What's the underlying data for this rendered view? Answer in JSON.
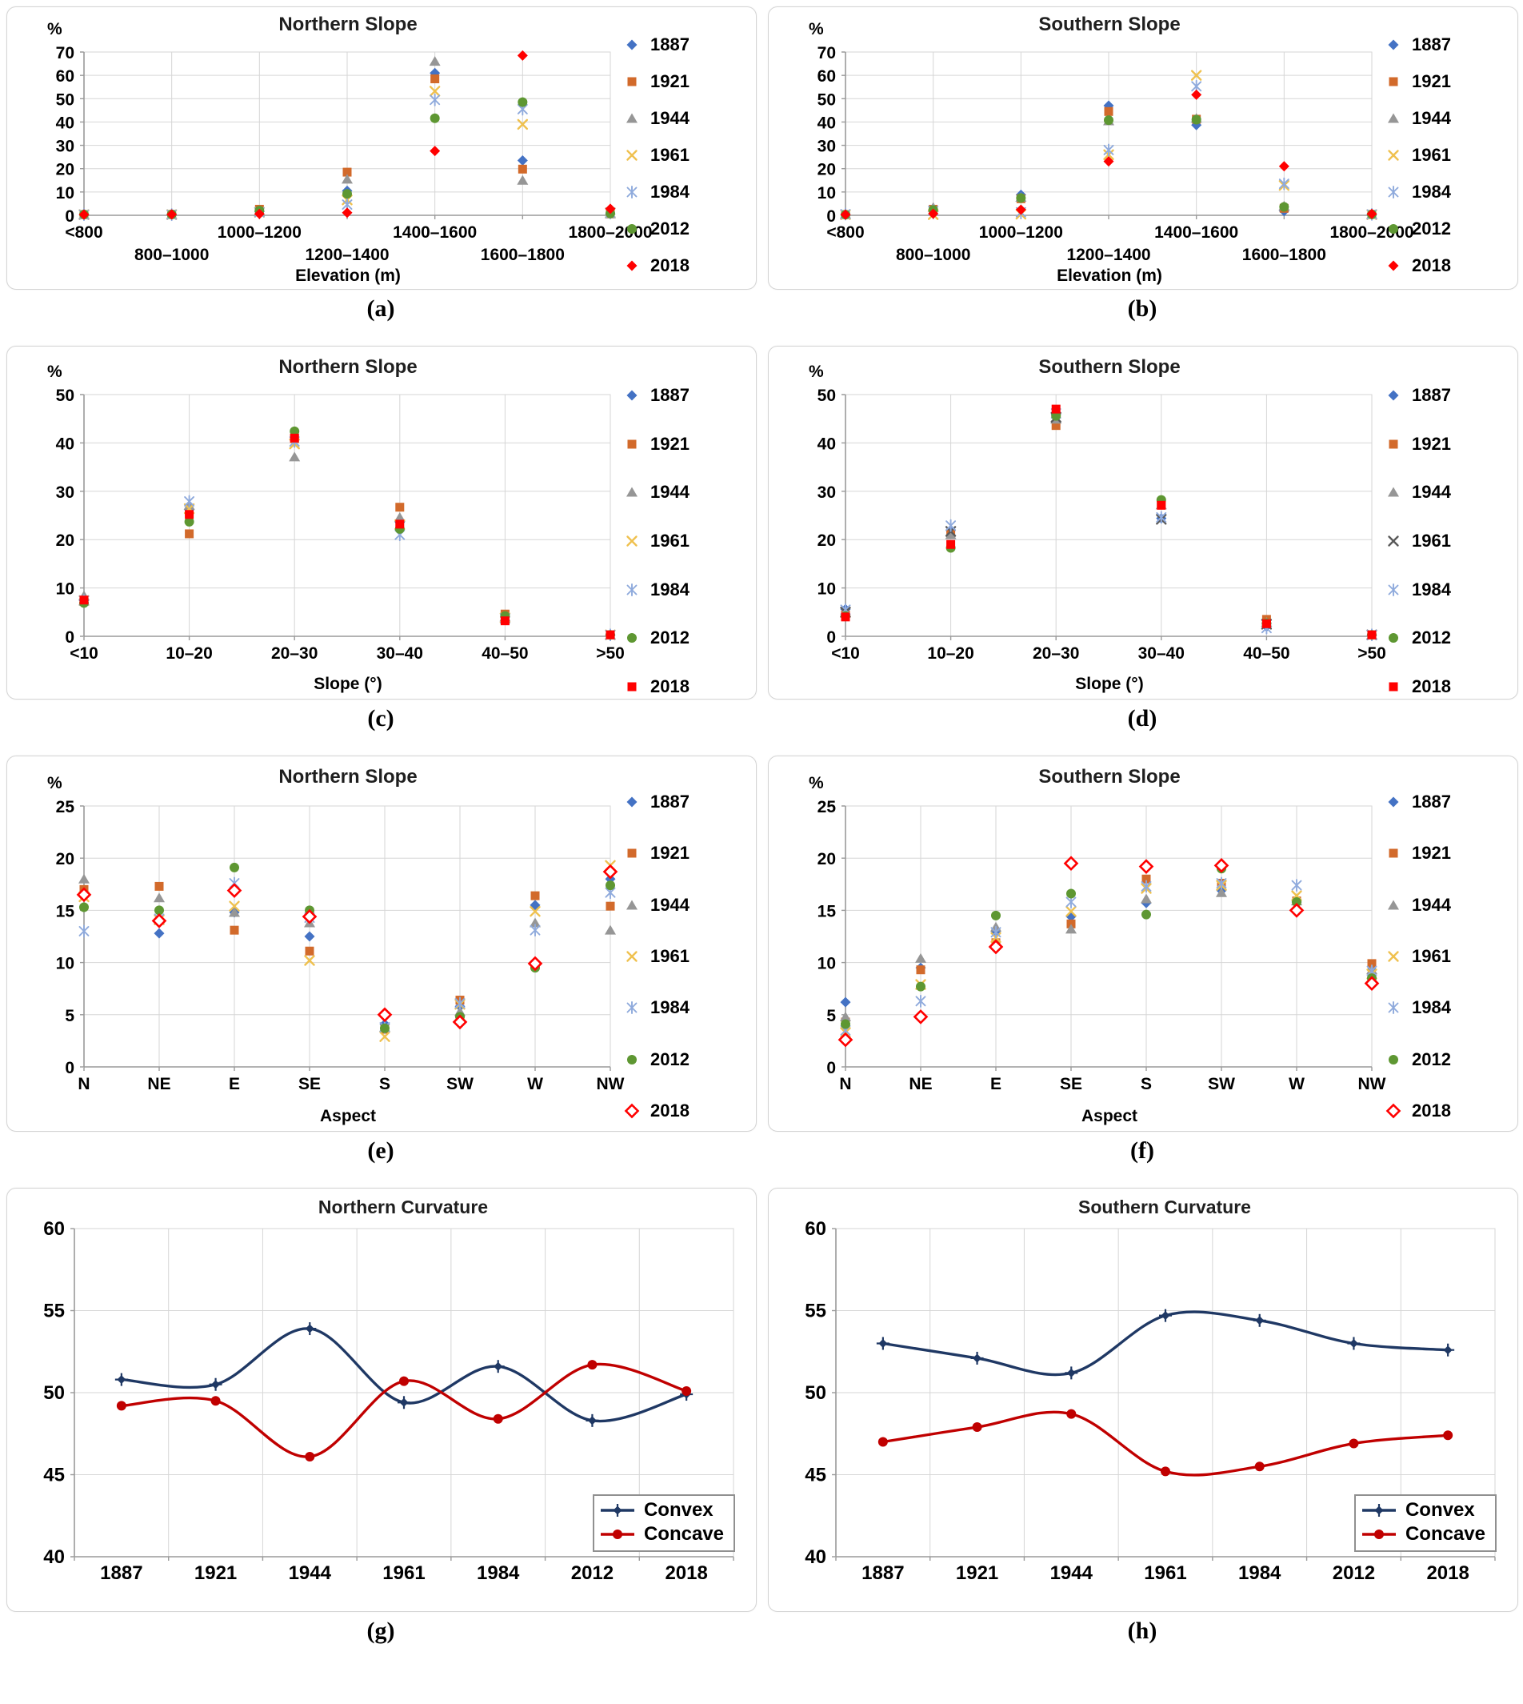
{
  "figure": {
    "background": "#ffffff",
    "panel_border": "#d4d4d4",
    "grid_color": "#d6d6d6",
    "axis_color": "#9a9a9a"
  },
  "chart_data": [
    {
      "id": "a",
      "caption": "(a)",
      "type": "scatter",
      "title": "Northern Slope",
      "y_axis_label": "%",
      "x_axis_label": "Elevation (m)",
      "ylim": [
        0,
        70
      ],
      "ytick_step": 10,
      "grid": true,
      "legend_position": "right",
      "stagger_x_labels": true,
      "categories": [
        "<800",
        "800–1000",
        "1000–1200",
        "1200–1400",
        "1400–1600",
        "1600–1800",
        "1800–2000"
      ],
      "series": [
        {
          "name": "1887",
          "marker": "diamond",
          "color": "#4472C4",
          "values": [
            0.3,
            0.3,
            1.6,
            10.5,
            61.0,
            23.5,
            0.6
          ]
        },
        {
          "name": "1921",
          "marker": "square",
          "color": "#D26A2B",
          "values": [
            0.3,
            0.4,
            2.6,
            18.5,
            58.5,
            19.8,
            0.6
          ]
        },
        {
          "name": "1944",
          "marker": "triangle",
          "color": "#969696",
          "values": [
            0.3,
            0.3,
            1.6,
            15.5,
            66.0,
            15.0,
            0.6
          ]
        },
        {
          "name": "1961",
          "marker": "x",
          "color": "#EFC14F",
          "values": [
            0.3,
            0.3,
            1.3,
            6.6,
            53.2,
            39.0,
            1.1
          ]
        },
        {
          "name": "1984",
          "marker": "xstar",
          "color": "#8FAADC",
          "values": [
            0.3,
            0.3,
            1.3,
            4.6,
            49.5,
            45.5,
            1.1
          ]
        },
        {
          "name": "2012",
          "marker": "circle",
          "color": "#5E9732",
          "values": [
            0.4,
            0.4,
            2.0,
            9.2,
            41.6,
            48.5,
            0.8
          ]
        },
        {
          "name": "2018",
          "marker": "diamond",
          "color": "#FF0000",
          "values": [
            0.3,
            0.4,
            0.6,
            1.1,
            27.6,
            68.5,
            2.8
          ]
        }
      ]
    },
    {
      "id": "b",
      "caption": "(b)",
      "type": "scatter",
      "title": "Southern Slope",
      "y_axis_label": "%",
      "x_axis_label": "Elevation (m)",
      "ylim": [
        0,
        70
      ],
      "ytick_step": 10,
      "grid": true,
      "legend_position": "right",
      "stagger_x_labels": true,
      "categories": [
        "<800",
        "800–1000",
        "1000–1200",
        "1200–1400",
        "1400–1600",
        "1600–1800",
        "1800–2000"
      ],
      "series": [
        {
          "name": "1887",
          "marker": "diamond",
          "color": "#4472C4",
          "values": [
            0.3,
            2.2,
            8.8,
            47.0,
            38.7,
            1.8,
            0.3
          ]
        },
        {
          "name": "1921",
          "marker": "square",
          "color": "#D26A2B",
          "values": [
            0.3,
            2.6,
            7.1,
            44.5,
            41.2,
            3.0,
            0.4
          ]
        },
        {
          "name": "1944",
          "marker": "triangle",
          "color": "#969696",
          "values": [
            0.5,
            3.4,
            7.7,
            40.5,
            41.6,
            4.0,
            0.4
          ]
        },
        {
          "name": "1961",
          "marker": "x",
          "color": "#EFC14F",
          "values": [
            0.3,
            0.3,
            0.5,
            26.0,
            60.0,
            12.8,
            0.3
          ]
        },
        {
          "name": "1984",
          "marker": "xstar",
          "color": "#8FAADC",
          "values": [
            0.5,
            1.9,
            1.3,
            28.0,
            55.3,
            13.5,
            0.4
          ]
        },
        {
          "name": "2012",
          "marker": "circle",
          "color": "#5E9732",
          "values": [
            0.3,
            2.3,
            7.4,
            40.8,
            41.0,
            3.6,
            0.4
          ]
        },
        {
          "name": "2018",
          "marker": "diamond",
          "color": "#FF0000",
          "values": [
            0.3,
            0.7,
            2.4,
            23.1,
            51.7,
            21.0,
            0.6
          ]
        }
      ]
    },
    {
      "id": "c",
      "caption": "(c)",
      "type": "scatter",
      "title": "Northern Slope",
      "y_axis_label": "%",
      "x_axis_label": "Slope (°)",
      "ylim": [
        0,
        50
      ],
      "ytick_step": 10,
      "grid": true,
      "legend_position": "right",
      "stagger_x_labels": false,
      "categories": [
        "<10",
        "10–20",
        "20–30",
        "30–40",
        "40–50",
        ">50"
      ],
      "series": [
        {
          "name": "1887",
          "marker": "diamond",
          "color": "#4472C4",
          "values": [
            7.4,
            26.2,
            40.6,
            23.6,
            4.0,
            0.3
          ]
        },
        {
          "name": "1921",
          "marker": "square",
          "color": "#D26A2B",
          "values": [
            7.3,
            21.2,
            40.9,
            26.7,
            4.6,
            0.3
          ]
        },
        {
          "name": "1944",
          "marker": "triangle",
          "color": "#969696",
          "values": [
            8.4,
            27.1,
            37.1,
            24.6,
            4.0,
            0.3
          ]
        },
        {
          "name": "1961",
          "marker": "x",
          "color": "#EFC14F",
          "values": [
            7.4,
            26.4,
            39.8,
            23.1,
            3.8,
            0.3
          ]
        },
        {
          "name": "1984",
          "marker": "xstar",
          "color": "#8FAADC",
          "values": [
            7.4,
            27.9,
            40.3,
            21.0,
            3.7,
            0.3
          ]
        },
        {
          "name": "2012",
          "marker": "circle",
          "color": "#5E9732",
          "values": [
            6.9,
            23.7,
            42.4,
            22.2,
            4.2,
            0.3
          ]
        },
        {
          "name": "2018",
          "marker": "square",
          "color": "#FF0000",
          "values": [
            7.5,
            25.2,
            41.0,
            23.2,
            3.2,
            0.3
          ]
        }
      ]
    },
    {
      "id": "d",
      "caption": "(d)",
      "type": "scatter",
      "title": "Southern Slope",
      "y_axis_label": "%",
      "x_axis_label": "Slope (°)",
      "ylim": [
        0,
        50
      ],
      "ytick_step": 10,
      "grid": true,
      "legend_position": "right",
      "stagger_x_labels": false,
      "categories": [
        "<10",
        "10–20",
        "20–30",
        "30–40",
        "40–50",
        ">50"
      ],
      "series": [
        {
          "name": "1887",
          "marker": "diamond",
          "color": "#4472C4",
          "values": [
            5.6,
            21.9,
            45.9,
            24.4,
            2.0,
            0.2
          ]
        },
        {
          "name": "1921",
          "marker": "square",
          "color": "#D26A2B",
          "values": [
            4.4,
            21.3,
            43.6,
            27.6,
            3.5,
            0.3
          ]
        },
        {
          "name": "1944",
          "marker": "triangle",
          "color": "#969696",
          "values": [
            4.8,
            21.0,
            44.9,
            27.2,
            2.9,
            0.3
          ]
        },
        {
          "name": "1961",
          "marker": "x",
          "color": "#595959",
          "values": [
            5.0,
            21.7,
            45.3,
            24.2,
            2.5,
            0.3
          ]
        },
        {
          "name": "1984",
          "marker": "xstar",
          "color": "#8FAADC",
          "values": [
            5.5,
            22.9,
            46.1,
            24.6,
            1.7,
            0.3
          ]
        },
        {
          "name": "2012",
          "marker": "circle",
          "color": "#5E9732",
          "values": [
            4.2,
            18.3,
            45.6,
            28.2,
            2.7,
            0.3
          ]
        },
        {
          "name": "2018",
          "marker": "square",
          "color": "#FF0000",
          "values": [
            4.0,
            19.0,
            47.0,
            27.1,
            2.6,
            0.3
          ]
        }
      ]
    },
    {
      "id": "e",
      "caption": "(e)",
      "type": "scatter",
      "title": "Northern Slope",
      "y_axis_label": "%",
      "x_axis_label": "Aspect",
      "ylim": [
        0,
        25
      ],
      "ytick_step": 5,
      "grid": true,
      "legend_position": "right",
      "stagger_x_labels": false,
      "categories": [
        "N",
        "NE",
        "E",
        "SE",
        "S",
        "SW",
        "W",
        "NW"
      ],
      "series": [
        {
          "name": "1887",
          "marker": "diamond",
          "color": "#4472C4",
          "values": [
            16.4,
            12.8,
            14.8,
            12.5,
            4.1,
            5.8,
            15.5,
            18.0
          ]
        },
        {
          "name": "1921",
          "marker": "square",
          "color": "#D26A2B",
          "values": [
            17.0,
            17.3,
            13.1,
            11.1,
            3.6,
            6.4,
            16.4,
            15.4
          ]
        },
        {
          "name": "1944",
          "marker": "triangle",
          "color": "#969696",
          "values": [
            18.0,
            16.2,
            14.8,
            13.8,
            3.8,
            5.3,
            13.8,
            13.1
          ]
        },
        {
          "name": "1961",
          "marker": "x",
          "color": "#EFC14F",
          "values": [
            16.3,
            14.1,
            15.4,
            10.2,
            2.9,
            6.0,
            14.9,
            19.3
          ]
        },
        {
          "name": "1984",
          "marker": "xstar",
          "color": "#8FAADC",
          "values": [
            13.0,
            14.2,
            17.6,
            14.3,
            3.8,
            6.1,
            13.1,
            16.7
          ]
        },
        {
          "name": "2012",
          "marker": "circle",
          "color": "#5E9732",
          "values": [
            15.3,
            15.0,
            19.1,
            15.0,
            3.7,
            4.8,
            9.5,
            17.4
          ]
        },
        {
          "name": "2018",
          "marker": "diamond-open",
          "color": "#FF0000",
          "values": [
            16.5,
            14.0,
            16.9,
            14.4,
            5.0,
            4.3,
            9.9,
            18.7
          ]
        }
      ]
    },
    {
      "id": "f",
      "caption": "(f)",
      "type": "scatter",
      "title": "Southern Slope",
      "y_axis_label": "%",
      "x_axis_label": "Aspect",
      "ylim": [
        0,
        25
      ],
      "ytick_step": 5,
      "grid": true,
      "legend_position": "right",
      "stagger_x_labels": false,
      "categories": [
        "N",
        "NE",
        "E",
        "SE",
        "S",
        "SW",
        "W",
        "NW"
      ],
      "series": [
        {
          "name": "1887",
          "marker": "diamond",
          "color": "#4472C4",
          "values": [
            6.2,
            9.5,
            13.0,
            14.4,
            15.7,
            16.9,
            15.8,
            9.3
          ]
        },
        {
          "name": "1921",
          "marker": "square",
          "color": "#D26A2B",
          "values": [
            4.3,
            9.3,
            11.9,
            13.7,
            18.0,
            17.6,
            15.9,
            9.9
          ]
        },
        {
          "name": "1944",
          "marker": "triangle",
          "color": "#969696",
          "values": [
            4.8,
            10.4,
            13.4,
            13.2,
            16.1,
            16.7,
            15.9,
            9.3
          ]
        },
        {
          "name": "1961",
          "marker": "x",
          "color": "#EFC14F",
          "values": [
            3.3,
            7.9,
            12.4,
            14.9,
            17.1,
            17.4,
            16.4,
            8.9
          ]
        },
        {
          "name": "1984",
          "marker": "xstar",
          "color": "#8FAADC",
          "values": [
            3.5,
            6.3,
            12.9,
            15.8,
            17.3,
            17.6,
            17.4,
            9.2
          ]
        },
        {
          "name": "2012",
          "marker": "circle",
          "color": "#5E9732",
          "values": [
            4.1,
            7.7,
            14.5,
            16.6,
            14.6,
            19.0,
            15.8,
            8.5
          ]
        },
        {
          "name": "2018",
          "marker": "diamond-open",
          "color": "#FF0000",
          "values": [
            2.6,
            4.8,
            11.5,
            19.5,
            19.2,
            19.3,
            15.0,
            8.0
          ]
        }
      ]
    },
    {
      "id": "g",
      "caption": "(g)",
      "type": "line",
      "title": "Northern Curvature",
      "y_axis_label": "",
      "x_axis_label": "",
      "ylim": [
        40,
        60
      ],
      "ytick_step": 5,
      "grid": true,
      "legend_position": "inside-bottom-right",
      "stagger_x_labels": false,
      "categories": [
        "1887",
        "1921",
        "1944",
        "1961",
        "1984",
        "2012",
        "2018"
      ],
      "series": [
        {
          "name": "Convex",
          "marker": "diamond-plus",
          "color": "#1F3864",
          "values": [
            50.8,
            50.5,
            53.9,
            49.4,
            51.6,
            48.3,
            49.9
          ]
        },
        {
          "name": "Concave",
          "marker": "circle",
          "color": "#C00000",
          "values": [
            49.2,
            49.5,
            46.1,
            50.7,
            48.4,
            51.7,
            50.1
          ]
        }
      ]
    },
    {
      "id": "h",
      "caption": "(h)",
      "type": "line",
      "title": "Southern Curvature",
      "y_axis_label": "",
      "x_axis_label": "",
      "ylim": [
        40,
        60
      ],
      "ytick_step": 5,
      "grid": true,
      "legend_position": "inside-bottom-right",
      "stagger_x_labels": false,
      "categories": [
        "1887",
        "1921",
        "1944",
        "1961",
        "1984",
        "2012",
        "2018"
      ],
      "series": [
        {
          "name": "Convex",
          "marker": "diamond-plus",
          "color": "#1F3864",
          "values": [
            53.0,
            52.1,
            51.2,
            54.7,
            54.4,
            53.0,
            52.6
          ]
        },
        {
          "name": "Concave",
          "marker": "circle",
          "color": "#C00000",
          "values": [
            47.0,
            47.9,
            48.7,
            45.2,
            45.5,
            46.9,
            47.4
          ]
        }
      ]
    }
  ]
}
